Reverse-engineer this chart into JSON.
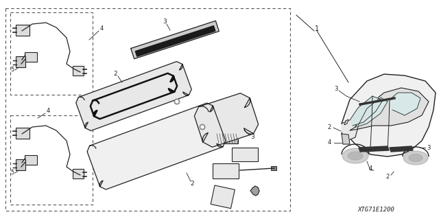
{
  "bg_color": "#ffffff",
  "line_color": "#222222",
  "diagram_code": "XTG71E1200",
  "fig_width": 6.4,
  "fig_height": 3.19
}
